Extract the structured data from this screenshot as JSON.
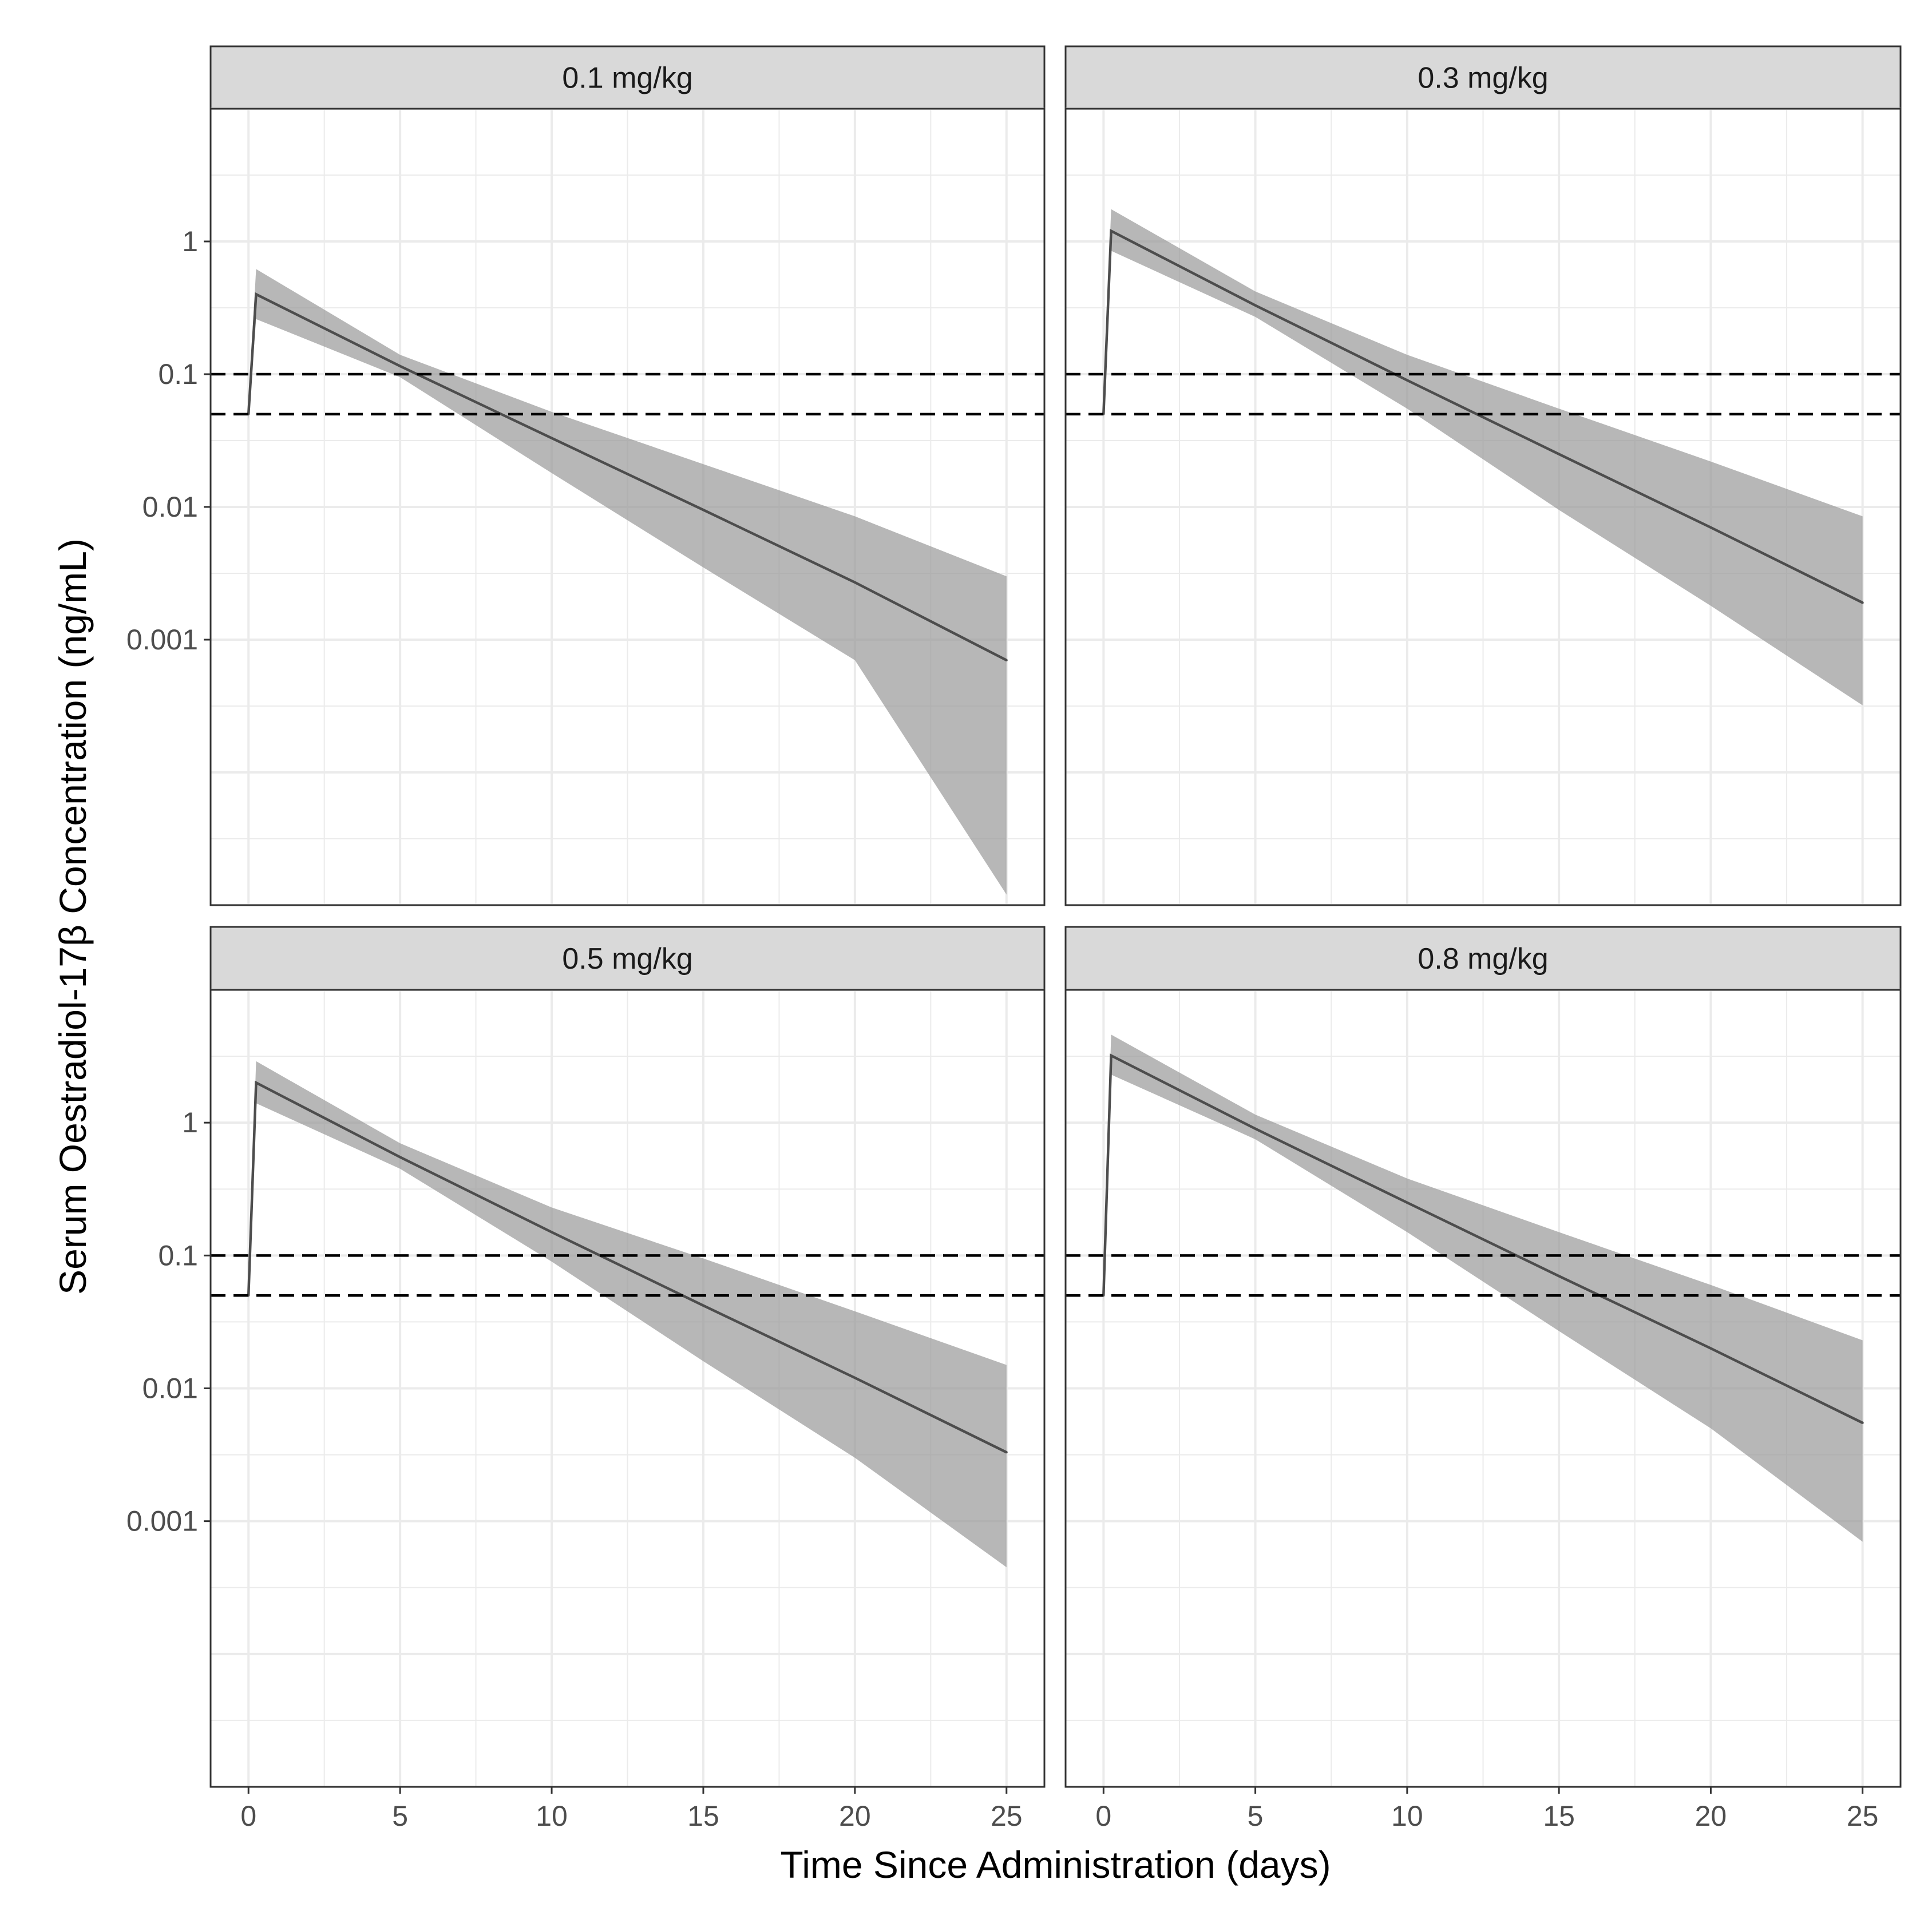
{
  "chart_data": {
    "type": "line",
    "layout": "facet_wrap 2x2",
    "xlabel": "Time Since Administration (days)",
    "ylabel": "Serum Oestradiol-17β Concentration (ng/mL)",
    "yscale": "log10",
    "xlim": [
      -1.25,
      26.25
    ],
    "ylim": [
      1e-05,
      10
    ],
    "x_ticks": [
      0,
      5,
      10,
      15,
      20,
      25
    ],
    "x_tick_labels": [
      "0",
      "5",
      "10",
      "15",
      "20",
      "25"
    ],
    "y_ticks": [
      1,
      0.1,
      0.01,
      0.001
    ],
    "y_tick_labels": [
      "1",
      "0.1",
      "0.01",
      "0.001"
    ],
    "reference_lines": [
      0.1,
      0.05
    ],
    "colors": {
      "line": "#4d4d4d",
      "ribbon": "#999999",
      "strip_bg": "#d9d9d9",
      "grid": "#ebebeb",
      "panel_border": "#333333",
      "reference": "#000000"
    },
    "panels": [
      {
        "label": "0.1 mg/kg",
        "x": [
          0,
          0.25,
          5,
          10,
          15,
          20,
          25
        ],
        "y": [
          0.05,
          0.4,
          0.115,
          0.033,
          0.0095,
          0.0027,
          0.0007
        ],
        "lower": [
          0.045,
          0.26,
          0.095,
          0.018,
          0.0035,
          0.0007,
          1.2e-05
        ],
        "upper": [
          0.06,
          0.62,
          0.14,
          0.052,
          0.021,
          0.0085,
          0.003
        ]
      },
      {
        "label": "0.3 mg/kg",
        "x": [
          0,
          0.25,
          5,
          10,
          15,
          20,
          25
        ],
        "y": [
          0.05,
          1.2,
          0.33,
          0.09,
          0.025,
          0.007,
          0.0019
        ],
        "lower": [
          0.045,
          0.85,
          0.27,
          0.055,
          0.0095,
          0.0018,
          0.00032
        ],
        "upper": [
          0.06,
          1.75,
          0.42,
          0.14,
          0.055,
          0.022,
          0.0085
        ]
      },
      {
        "label": "0.5 mg/kg",
        "x": [
          0,
          0.25,
          5,
          10,
          15,
          20,
          25
        ],
        "y": [
          0.05,
          2.0,
          0.55,
          0.15,
          0.042,
          0.012,
          0.0033
        ],
        "lower": [
          0.045,
          1.4,
          0.45,
          0.09,
          0.016,
          0.003,
          0.00045
        ],
        "upper": [
          0.06,
          2.9,
          0.7,
          0.23,
          0.095,
          0.038,
          0.015
        ]
      },
      {
        "label": "0.8 mg/kg",
        "x": [
          0,
          0.25,
          5,
          10,
          15,
          20,
          25
        ],
        "y": [
          0.05,
          3.2,
          0.9,
          0.25,
          0.07,
          0.02,
          0.0055
        ],
        "lower": [
          0.045,
          2.3,
          0.75,
          0.15,
          0.027,
          0.005,
          0.0007
        ],
        "upper": [
          0.06,
          4.6,
          1.15,
          0.38,
          0.15,
          0.06,
          0.023
        ]
      }
    ]
  }
}
